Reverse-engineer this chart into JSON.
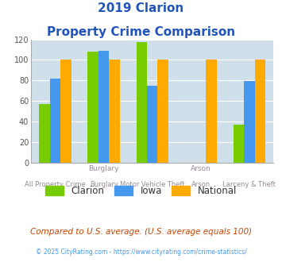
{
  "title_line1": "2019 Clarion",
  "title_line2": "Property Crime Comparison",
  "categories": [
    "All Property Crime",
    "Burglary",
    "Motor Vehicle Theft",
    "Arson",
    "Larceny & Theft"
  ],
  "top_labels": [
    "",
    "Burglary",
    "",
    "Arson",
    ""
  ],
  "clarion": [
    57,
    108,
    117,
    0,
    37
  ],
  "iowa": [
    82,
    109,
    75,
    0,
    79
  ],
  "national": [
    100,
    100,
    100,
    100,
    100
  ],
  "clarion_color": "#77cc00",
  "iowa_color": "#4499ee",
  "national_color": "#ffaa00",
  "plot_bg": "#cfe0ea",
  "ylim": [
    0,
    120
  ],
  "yticks": [
    0,
    20,
    40,
    60,
    80,
    100,
    120
  ],
  "footnote1": "Compared to U.S. average. (U.S. average equals 100)",
  "footnote2": "© 2025 CityRating.com - https://www.cityrating.com/crime-statistics/",
  "title_color": "#2255bb",
  "xlabel_color": "#998899",
  "legend_labels": [
    "Clarion",
    "Iowa",
    "National"
  ],
  "bar_width": 0.22
}
